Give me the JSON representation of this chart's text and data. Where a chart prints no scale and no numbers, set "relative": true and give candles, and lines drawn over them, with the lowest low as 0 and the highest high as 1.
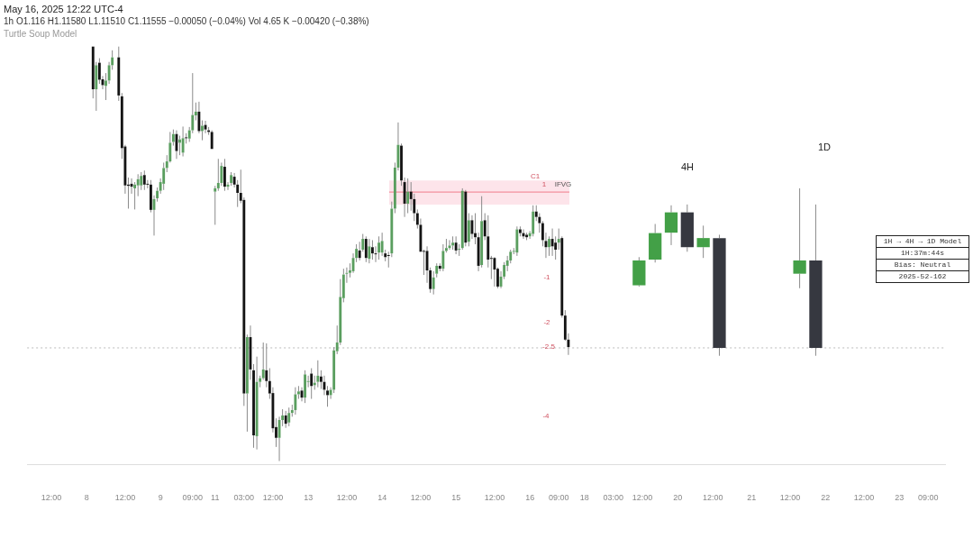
{
  "chart_data": {
    "type": "candlestick",
    "title": "May 16, 2025 12:22 UTC-4",
    "subtitle": "1h  O1.116  H1.11580  L1.11510  C1.11555  −0.00050 (−0.04%)  Vol 4.65 K  −0.00420 (−0.38%)",
    "relative": true,
    "grid": false,
    "categories": [
      null,
      null,
      null,
      null,
      null,
      null,
      null,
      "12:00",
      null,
      null,
      null,
      null,
      null,
      null,
      null,
      null,
      null,
      null,
      "8",
      null,
      null,
      null,
      null,
      null,
      null,
      null,
      null,
      null,
      null,
      null,
      "12:00",
      null,
      null,
      null,
      null,
      null,
      null,
      null,
      null,
      null,
      null,
      "9",
      null,
      null,
      null,
      null,
      null,
      null,
      null,
      null,
      null,
      "09:00",
      null,
      null,
      null,
      null,
      null,
      null,
      "11",
      null,
      null,
      null,
      null,
      null,
      null,
      null,
      null,
      "03:00",
      null,
      null,
      null,
      null,
      null,
      null,
      null,
      null,
      "12:00",
      null,
      null,
      null,
      null,
      null,
      null,
      null,
      null,
      null,
      null,
      "13",
      null,
      null,
      null,
      null,
      null,
      null,
      null,
      null,
      null,
      null,
      null,
      "12:00",
      null,
      null,
      null,
      null,
      null,
      null,
      null,
      null,
      null,
      null,
      "14",
      null,
      null,
      null,
      null,
      null,
      null,
      null,
      null,
      null,
      null,
      null,
      "12:00",
      null,
      null,
      null,
      null,
      null,
      null,
      null,
      null,
      null,
      null,
      "15",
      null,
      null,
      null,
      null,
      null,
      null,
      null,
      null,
      null,
      null,
      null,
      "12:00",
      null,
      null,
      null,
      null,
      null,
      null,
      null,
      null,
      null,
      null,
      "16",
      null,
      null,
      null,
      null,
      null,
      null,
      null,
      null,
      "09:00",
      null,
      null,
      null,
      null,
      null,
      null,
      null,
      "18",
      null,
      null,
      null,
      null,
      null,
      null,
      null,
      null,
      "03:00",
      null,
      null,
      null,
      null,
      null,
      null,
      null,
      null,
      "12:00",
      null,
      null,
      null,
      null,
      null,
      null,
      null,
      null,
      null,
      null,
      "20",
      null,
      null,
      null,
      null,
      null,
      null,
      null,
      null,
      null,
      null,
      "12:00",
      null,
      null,
      null,
      null,
      null,
      null,
      null,
      null,
      null,
      null,
      null,
      "21",
      null,
      null,
      null,
      null,
      null,
      null,
      null,
      null,
      null,
      null,
      null,
      "12:00",
      null,
      null,
      null,
      null,
      null,
      null,
      null,
      null,
      null,
      null,
      "22",
      null,
      null,
      null,
      null,
      null,
      null,
      null,
      null,
      null,
      null,
      null,
      "12:00",
      null,
      null,
      null,
      null,
      null,
      null,
      null,
      null,
      null,
      null,
      "23",
      null,
      null,
      null,
      null,
      null,
      null,
      null,
      null,
      "09:00",
      null,
      null,
      null,
      null,
      null
    ],
    "ohlc": [
      null,
      null,
      null,
      null,
      null,
      null,
      null,
      null,
      null,
      null,
      null,
      null,
      null,
      null,
      null,
      null,
      null,
      null,
      null,
      null,
      [
        1,
        1,
        0.875,
        0.897
      ],
      [
        0.897,
        0.963,
        0.845,
        0.955
      ],
      [
        0.961,
        0.972,
        0.91,
        0.92
      ],
      [
        0.921,
        0.929,
        0.897,
        0.907
      ],
      [
        0.905,
        0.936,
        0.871,
        0.918
      ],
      [
        0.918,
        0.963,
        0.91,
        0.955
      ],
      [
        0.955,
        0.991,
        0.944,
        0.974
      ],
      null,
      [
        0.974,
        1,
        0.869,
        0.882
      ],
      [
        0.88,
        0.888,
        0.729,
        0.755
      ],
      [
        0.759,
        0.763,
        0.645,
        0.665
      ],
      [
        0.667,
        0.684,
        0.609,
        0.664
      ],
      [
        0.669,
        0.682,
        0.645,
        0.662
      ],
      [
        0.658,
        0.673,
        0.607,
        0.667
      ],
      [
        0.665,
        0.692,
        0.639,
        0.68
      ],
      [
        0.665,
        0.697,
        0.654,
        0.688
      ],
      [
        0.69,
        0.701,
        0.654,
        0.667
      ],
      [
        0.669,
        0.678,
        0.658,
        0.667
      ],
      [
        0.667,
        0.678,
        0.6,
        0.606
      ],
      [
        0.606,
        0.641,
        0.544,
        0.632
      ],
      [
        0.634,
        0.66,
        0.626,
        0.652
      ],
      [
        0.652,
        0.682,
        0.645,
        0.673
      ],
      [
        0.669,
        0.72,
        0.654,
        0.707
      ],
      [
        0.707,
        0.738,
        0.697,
        0.723
      ],
      [
        0.723,
        0.794,
        0.72,
        0.768
      ],
      [
        0.77,
        0.8,
        0.761,
        0.789
      ],
      [
        0.789,
        0.798,
        0.729,
        0.748
      ],
      [
        0.768,
        0.785,
        0.738,
        0.776
      ],
      [
        0.744,
        0.807,
        0.735,
        0.779
      ],
      [
        0.781,
        0.791,
        0.766,
        0.779
      ],
      [
        0.778,
        0.806,
        0.77,
        0.798
      ],
      [
        0.798,
        0.936,
        0.791,
        0.835
      ],
      [
        0.834,
        0.865,
        0.822,
        0.843
      ],
      [
        0.843,
        0.867,
        0.791,
        0.796
      ],
      [
        0.796,
        0.822,
        0.774,
        0.809
      ],
      [
        0.811,
        0.821,
        0.791,
        0.8
      ],
      [
        0.798,
        0.806,
        0.787,
        0.794
      ],
      [
        0.794,
        0.798,
        0.753,
        0.753
      ],
      [
        0.65,
        0.664,
        0.57,
        0.658
      ],
      [
        0.658,
        0.729,
        0.652,
        0.671
      ],
      [
        0.671,
        0.72,
        0.664,
        0.712
      ],
      [
        0.71,
        0.729,
        0.652,
        0.662
      ],
      [
        0.662,
        0.673,
        0.654,
        0.667
      ],
      [
        0.671,
        0.697,
        0.664,
        0.69
      ],
      [
        0.686,
        0.695,
        0.66,
        0.667
      ],
      [
        0.667,
        0.678,
        0.613,
        0.647
      ],
      [
        0.647,
        0.703,
        0.622,
        0.628
      ],
      [
        0.63,
        0.636,
        0.133,
        0.163
      ],
      [
        0.163,
        0.305,
        0.071,
        0.299
      ],
      [
        0.299,
        0.327,
        0.196,
        0.221
      ],
      [
        0.219,
        0.234,
        0.032,
        0.062
      ],
      [
        0.06,
        0.252,
        0.028,
        0.191
      ],
      [
        0.191,
        0.206,
        0.178,
        0.2
      ],
      [
        0.2,
        0.286,
        0.196,
        0.221
      ],
      [
        0.219,
        0.284,
        0.178,
        0.193
      ],
      [
        0.193,
        0.224,
        0.15,
        0.163
      ],
      [
        0.164,
        0.178,
        0.069,
        0.079
      ],
      [
        0.082,
        0.103,
        0.034,
        0.056
      ],
      [
        0.056,
        0.107,
        0,
        0.099
      ],
      [
        0.099,
        0.125,
        0.084,
        0.11
      ],
      [
        0.11,
        0.121,
        0.08,
        0.09
      ],
      [
        0.093,
        0.129,
        0.084,
        0.116
      ],
      [
        0.116,
        0.136,
        0.107,
        0.123
      ],
      [
        0.123,
        0.178,
        0.112,
        0.161
      ],
      [
        0.161,
        0.181,
        0.15,
        0.168
      ],
      [
        0.17,
        0.178,
        0.144,
        0.153
      ],
      [
        0.153,
        0.219,
        0.14,
        0.209
      ],
      [
        0.191,
        0.206,
        0.178,
        0.193
      ],
      [
        0.211,
        0.224,
        0.15,
        0.181
      ],
      [
        0.183,
        0.206,
        0.172,
        0.189
      ],
      [
        0.191,
        0.243,
        0.178,
        0.206
      ],
      [
        0.204,
        0.219,
        0.174,
        0.191
      ],
      [
        0.191,
        0.206,
        0.159,
        0.172
      ],
      [
        0.17,
        0.181,
        0.131,
        0.159
      ],
      [
        0.159,
        0.178,
        0.15,
        0.172
      ],
      [
        0.172,
        0.275,
        0.164,
        0.267
      ],
      [
        0.265,
        0.327,
        0.258,
        0.286
      ],
      [
        0.286,
        0.439,
        0.28,
        0.396
      ],
      [
        0.393,
        0.464,
        0.383,
        0.45
      ],
      [
        0.452,
        0.467,
        0.43,
        0.454
      ],
      [
        0.454,
        0.477,
        0.443,
        0.46
      ],
      [
        0.458,
        0.501,
        0.454,
        0.49
      ],
      [
        0.49,
        0.523,
        0.48,
        0.512
      ],
      [
        0.508,
        0.529,
        0.484,
        0.49
      ],
      [
        0.51,
        0.548,
        0.505,
        0.536
      ],
      [
        0.536,
        0.542,
        0.48,
        0.49
      ],
      [
        0.488,
        0.536,
        0.477,
        0.518
      ],
      [
        0.516,
        0.533,
        0.486,
        0.501
      ],
      [
        0.501,
        0.518,
        0.48,
        0.499
      ],
      [
        0.503,
        0.542,
        0.486,
        0.527
      ],
      [
        0.503,
        0.551,
        0.495,
        0.531
      ],
      [
        0.501,
        0.51,
        0.482,
        0.492
      ],
      [
        0.497,
        0.505,
        0.467,
        0.495
      ],
      [
        0.501,
        0.626,
        0.492,
        0.609
      ],
      [
        0.609,
        0.72,
        0.598,
        0.708
      ],
      [
        0.708,
        0.817,
        0.701,
        0.763
      ],
      [
        0.761,
        0.766,
        0.664,
        0.677
      ],
      [
        0.673,
        0.684,
        0.589,
        0.621
      ],
      [
        0.621,
        0.682,
        0.598,
        0.65
      ],
      [
        0.65,
        0.673,
        0.604,
        0.632
      ],
      [
        0.632,
        0.645,
        0.579,
        0.598
      ],
      [
        0.598,
        0.607,
        0.561,
        0.57
      ],
      [
        0.57,
        0.585,
        0.505,
        0.505
      ],
      [
        0.507,
        0.51,
        0.449,
        0.505
      ],
      [
        0.507,
        0.518,
        0.43,
        0.46
      ],
      [
        0.46,
        0.467,
        0.406,
        0.415
      ],
      [
        0.415,
        0.458,
        0.402,
        0.443
      ],
      [
        0.452,
        0.477,
        0.443,
        0.471
      ],
      [
        0.471,
        0.477,
        0.458,
        0.464
      ],
      [
        0.464,
        0.523,
        0.458,
        0.507
      ],
      [
        0.507,
        0.536,
        0.503,
        0.514
      ],
      [
        0.514,
        0.533,
        0.51,
        0.52
      ],
      [
        0.52,
        0.542,
        0.51,
        0.527
      ],
      [
        0.527,
        0.542,
        0.499,
        0.508
      ],
      [
        0.51,
        0.523,
        0.495,
        0.512
      ],
      [
        0.514,
        0.658,
        0.51,
        0.652
      ],
      [
        0.65,
        0.654,
        0.518,
        0.527
      ],
      [
        0.529,
        0.598,
        0.518,
        0.581
      ],
      [
        0.581,
        0.593,
        0.536,
        0.548
      ],
      [
        0.55,
        0.598,
        0.523,
        0.54
      ],
      [
        0.54,
        0.551,
        0.458,
        0.471
      ],
      [
        0.473,
        0.639,
        0.467,
        0.579
      ],
      [
        0.581,
        0.598,
        0.533,
        0.542
      ],
      [
        0.542,
        0.593,
        0.467,
        0.486
      ],
      [
        0.49,
        0.495,
        0.439,
        0.488
      ],
      [
        0.49,
        0.492,
        0.421,
        0.462
      ],
      [
        0.464,
        0.467,
        0.417,
        0.421
      ],
      [
        0.421,
        0.458,
        0.417,
        0.445
      ],
      [
        0.445,
        0.48,
        0.439,
        0.473
      ],
      [
        0.471,
        0.495,
        0.458,
        0.484
      ],
      [
        0.484,
        0.51,
        0.477,
        0.505
      ],
      [
        0.505,
        0.514,
        0.499,
        0.507
      ],
      [
        0.503,
        0.566,
        0.495,
        0.559
      ],
      [
        0.559,
        0.566,
        0.542,
        0.55
      ],
      [
        0.55,
        0.559,
        0.536,
        0.542
      ],
      [
        0.546,
        0.551,
        0.533,
        0.54
      ],
      [
        0.542,
        0.555,
        0.536,
        0.55
      ],
      [
        0.548,
        0.617,
        0.542,
        0.602
      ],
      [
        0.602,
        0.617,
        0.579,
        0.589
      ],
      [
        0.589,
        0.598,
        0.551,
        0.574
      ],
      [
        0.574,
        0.579,
        0.518,
        0.533
      ],
      [
        0.531,
        0.551,
        0.49,
        0.516
      ],
      [
        0.516,
        0.542,
        0.495,
        0.536
      ],
      [
        0.536,
        0.561,
        0.495,
        0.518
      ],
      [
        0.527,
        0.542,
        0.486,
        0.51
      ],
      [
        0.527,
        0.561,
        0.51,
        0.536
      ],
      [
        0.538,
        0.542,
        0.346,
        0.351
      ],
      [
        0.351,
        0.364,
        0.29,
        0.293
      ],
      [
        0.293,
        0.308,
        0.256,
        0.275
      ],
      null,
      null,
      null,
      null,
      null,
      null,
      null,
      null,
      null,
      null,
      null,
      null,
      null,
      null,
      null,
      null,
      null,
      null,
      null,
      null,
      null,
      [
        0.424,
        0.492,
        0.421,
        0.484
      ],
      null,
      null,
      null,
      null,
      [
        0.486,
        0.572,
        0.479,
        0.55
      ],
      null,
      null,
      null,
      null,
      [
        0.551,
        0.617,
        0.521,
        0.6
      ],
      null,
      null,
      null,
      null,
      [
        0.6,
        0.619,
        0.505,
        0.516
      ],
      null,
      null,
      null,
      null,
      [
        0.516,
        0.568,
        0.49,
        0.538
      ],
      null,
      null,
      null,
      null,
      [
        0.538,
        0.546,
        0.254,
        0.273
      ],
      null,
      null,
      null,
      null,
      null,
      null,
      null,
      null,
      null,
      null,
      null,
      null,
      null,
      null,
      null,
      null,
      null,
      null,
      null,
      null,
      null,
      null,
      null,
      null,
      [
        0.452,
        0.658,
        0.417,
        0.484
      ],
      null,
      null,
      null,
      null,
      [
        0.484,
        0.619,
        0.254,
        0.273
      ],
      null,
      null,
      null,
      null,
      null,
      null,
      null,
      null,
      null,
      null,
      null,
      null,
      null,
      null,
      null,
      null,
      null,
      null,
      null,
      null,
      null,
      null,
      null,
      null,
      null,
      null,
      null,
      null,
      null,
      null,
      null,
      null,
      null,
      null,
      null,
      null,
      null,
      null,
      null,
      null
    ],
    "colors": [
      null,
      null,
      null,
      null,
      null,
      null,
      null,
      null,
      null,
      null,
      null,
      null,
      null,
      null,
      null,
      null,
      null,
      null,
      null,
      null,
      "#141414",
      "#5a9e5f",
      "#141414",
      "#141414",
      "#5a9e5f",
      "#5a9e5f",
      "#5a9e5f",
      null,
      "#141414",
      "#141414",
      "#141414",
      "#141414",
      "#141414",
      "#5a9e5f",
      "#5a9e5f",
      "#5a9e5f",
      "#141414",
      "#141414",
      "#141414",
      "#5a9e5f",
      "#5a9e5f",
      "#5a9e5f",
      "#5a9e5f",
      "#5a9e5f",
      "#5a9e5f",
      "#5a9e5f",
      "#141414",
      "#5a9e5f",
      "#5a9e5f",
      "#141414",
      "#5a9e5f",
      "#5a9e5f",
      "#5a9e5f",
      "#141414",
      "#5a9e5f",
      "#141414",
      "#141414",
      "#141414",
      "#5a9e5f",
      "#5a9e5f",
      "#5a9e5f",
      "#141414",
      "#5a9e5f",
      "#5a9e5f",
      "#141414",
      "#141414",
      "#141414",
      "#141414",
      "#5a9e5f",
      "#141414",
      "#141414",
      "#5a9e5f",
      "#5a9e5f",
      "#5a9e5f",
      "#141414",
      "#141414",
      "#141414",
      "#141414",
      "#5a9e5f",
      "#5a9e5f",
      "#141414",
      "#5a9e5f",
      "#5a9e5f",
      "#5a9e5f",
      "#5a9e5f",
      "#141414",
      "#5a9e5f",
      "#5a9e5f",
      "#141414",
      "#5a9e5f",
      "#5a9e5f",
      "#141414",
      "#141414",
      "#141414",
      "#5a9e5f",
      "#5a9e5f",
      "#5a9e5f",
      "#5a9e5f",
      "#5a9e5f",
      "#5a9e5f",
      "#5a9e5f",
      "#5a9e5f",
      "#5a9e5f",
      "#141414",
      "#5a9e5f",
      "#141414",
      "#5a9e5f",
      "#141414",
      "#141414",
      "#5a9e5f",
      "#5a9e5f",
      "#141414",
      "#141414",
      "#5a9e5f",
      "#5a9e5f",
      "#5a9e5f",
      "#141414",
      "#141414",
      "#5a9e5f",
      "#141414",
      "#141414",
      "#141414",
      "#141414",
      "#141414",
      "#141414",
      "#141414",
      "#5a9e5f",
      "#5a9e5f",
      "#141414",
      "#5a9e5f",
      "#5a9e5f",
      "#5a9e5f",
      "#5a9e5f",
      "#141414",
      "#5a9e5f",
      "#5a9e5f",
      "#141414",
      "#5a9e5f",
      "#141414",
      "#141414",
      "#141414",
      "#5a9e5f",
      "#141414",
      "#141414",
      "#141414",
      "#141414",
      "#141414",
      "#5a9e5f",
      "#5a9e5f",
      "#5a9e5f",
      "#5a9e5f",
      "#5a9e5f",
      "#5a9e5f",
      "#141414",
      "#141414",
      "#141414",
      "#5a9e5f",
      "#5a9e5f",
      "#141414",
      "#141414",
      "#141414",
      "#141414",
      "#5a9e5f",
      "#141414",
      "#141414",
      "#5a9e5f",
      "#141414",
      "#141414",
      "#141414",
      null,
      null,
      null,
      null,
      null,
      null,
      null,
      null,
      null,
      null,
      null,
      null,
      null,
      null,
      null,
      null,
      null,
      null,
      null,
      null,
      null,
      "#43a047",
      null,
      null,
      null,
      null,
      "#43a047",
      null,
      null,
      null,
      null,
      "#43a047",
      null,
      null,
      null,
      null,
      "#363840",
      null,
      null,
      null,
      null,
      "#43a047",
      null,
      null,
      null,
      null,
      "#363840",
      null,
      null,
      null,
      null,
      null,
      null,
      null,
      null,
      null,
      null,
      null,
      null,
      null,
      null,
      null,
      null,
      null,
      null,
      null,
      null,
      null,
      null,
      null,
      null,
      "#43a047",
      null,
      null,
      null,
      null,
      "#363840",
      null,
      null,
      null,
      null,
      null,
      null,
      null,
      null,
      null,
      null,
      null,
      null,
      null,
      null,
      null,
      null,
      null,
      null,
      null,
      null,
      null,
      null,
      null,
      null,
      null,
      null,
      null,
      null,
      null,
      null,
      null,
      null,
      null,
      null,
      null,
      null,
      null,
      null,
      null,
      null
    ],
    "bands": [
      {
        "axis": "y",
        "from": 0.619,
        "to": 0.677,
        "label": "IFVG",
        "color": "#fde4ea"
      }
    ],
    "ref_lines": [
      {
        "axis": "y",
        "value": 0.649,
        "color": "#f07a8a",
        "line_style": "solid"
      },
      {
        "axis": "y",
        "value": 0.273,
        "color": "#bbbbbb",
        "line_style": "dotted"
      }
    ],
    "annotations": [
      "Turtle Soup Model",
      "1H → 4H → 1D Model",
      "1H:37m:44s",
      "Bias: Neutral",
      "2025-52-162",
      "4H",
      "1D",
      "C1",
      "1",
      "-1",
      "-2",
      "-2.5",
      "-4"
    ]
  }
}
